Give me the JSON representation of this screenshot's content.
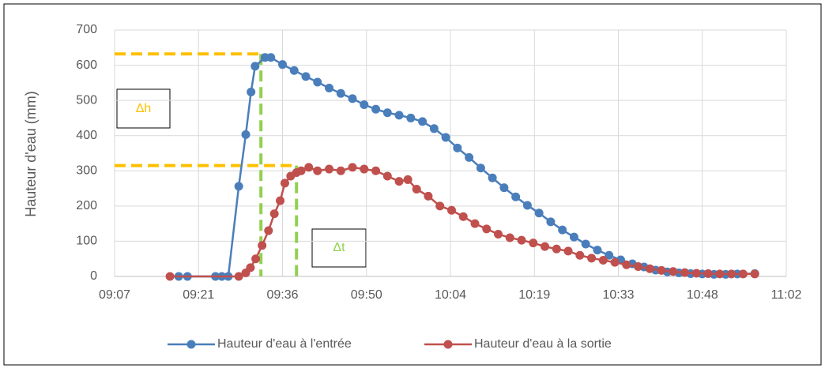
{
  "chart_data": {
    "type": "line",
    "y_label": "Hauteur d'eau (mm)",
    "xlim": [
      547.2,
      662.4
    ],
    "xticks": [
      {
        "value": 547.2,
        "label": "09:07"
      },
      {
        "value": 561.6,
        "label": "09:21"
      },
      {
        "value": 576,
        "label": "09:36"
      },
      {
        "value": 590.4,
        "label": "09:50"
      },
      {
        "value": 604.8,
        "label": "10:04"
      },
      {
        "value": 619.2,
        "label": "10:19"
      },
      {
        "value": 633.6,
        "label": "10:33"
      },
      {
        "value": 648,
        "label": "10:48"
      },
      {
        "value": 662.4,
        "label": "11:02"
      }
    ],
    "ylim": [
      0,
      700
    ],
    "yticks": [
      0,
      100,
      200,
      300,
      400,
      500,
      600,
      700
    ],
    "grid": true,
    "legend": "bottom",
    "series": [
      {
        "name": "Hauteur d'eau à l'entrée",
        "color": "#4a7ebb",
        "x": [
          558.2,
          559.7,
          564.5,
          565.6,
          566.7,
          568.5,
          569.7,
          570.6,
          571.3,
          573,
          574,
          576,
          578,
          580,
          582,
          584,
          586,
          588,
          590,
          592,
          594,
          596,
          598,
          600,
          602,
          604,
          606,
          608,
          610,
          612,
          614,
          616,
          618,
          620,
          622,
          624,
          626,
          628,
          630,
          632,
          634,
          636,
          638,
          640,
          642,
          644,
          646,
          648,
          650,
          652,
          654,
          657
        ],
        "values": [
          0,
          0,
          0,
          0,
          0,
          256,
          403,
          524,
          597,
          622,
          622,
          602,
          585,
          568,
          552,
          535,
          520,
          505,
          488,
          475,
          465,
          458,
          450,
          440,
          420,
          395,
          365,
          338,
          308,
          280,
          252,
          226,
          202,
          180,
          155,
          132,
          112,
          92,
          75,
          60,
          47,
          36,
          27,
          18,
          13,
          10,
          8,
          7,
          6,
          6,
          7,
          8
        ]
      },
      {
        "name": "Hauteur d'eau à la sortie",
        "color": "#c0504d",
        "x": [
          556.7,
          568.5,
          569.7,
          570.5,
          571.4,
          572.5,
          573.6,
          574.6,
          575.6,
          576.4,
          577.4,
          578.4,
          579.2,
          580.5,
          582,
          584,
          586,
          588,
          590,
          592,
          594,
          596,
          597.5,
          599,
          601,
          603,
          605,
          607,
          609,
          611,
          613,
          615,
          617,
          619,
          621,
          623,
          625,
          627,
          629,
          631,
          633,
          635,
          637,
          639,
          641,
          643,
          645,
          647,
          649,
          651,
          653,
          655,
          657
        ],
        "values": [
          0,
          0,
          10,
          25,
          50,
          88,
          130,
          178,
          215,
          265,
          285,
          295,
          300,
          310,
          300,
          305,
          300,
          310,
          305,
          300,
          285,
          270,
          275,
          248,
          228,
          200,
          188,
          170,
          150,
          135,
          120,
          110,
          103,
          95,
          85,
          78,
          72,
          60,
          52,
          46,
          40,
          33,
          28,
          22,
          17,
          14,
          11,
          9,
          8,
          7,
          7,
          7,
          7
        ]
      }
    ],
    "reference_lines": [
      {
        "y": 632,
        "x": [
          547.2,
          572.3
        ],
        "color": "#ffc000"
      },
      {
        "y": 315,
        "x": [
          547.2,
          578.4
        ],
        "color": "#ffc000"
      },
      {
        "x": 572.3,
        "y": [
          632,
          0
        ],
        "color": "#92d050"
      },
      {
        "x": 578.4,
        "y": [
          315,
          0
        ],
        "color": "#92d050"
      }
    ],
    "annotations": [
      {
        "text": "Δh",
        "color": "#ffc000"
      },
      {
        "text": "Δt",
        "color": "#92d050"
      }
    ]
  }
}
